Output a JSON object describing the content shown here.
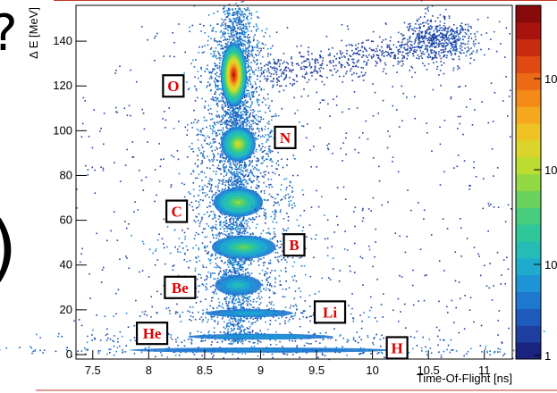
{
  "chart_data": {
    "type": "heatmap",
    "title": "",
    "xlabel": "Time-Of-Flight [ns]",
    "ylabel": "Δ E [MeV]",
    "xlim": [
      7.35,
      11.25
    ],
    "ylim": [
      -2,
      156
    ],
    "x_ticks": [
      "7.5",
      "8",
      "8.5",
      "9",
      "9.5",
      "10",
      "10.5",
      "11"
    ],
    "y_ticks": [
      "0",
      "20",
      "40",
      "60",
      "80",
      "100",
      "120",
      "140"
    ],
    "colorbar": {
      "scale": "log",
      "tick_labels": [
        "1",
        "10",
        "10",
        "10"
      ],
      "colors": [
        "#1a237e",
        "#1f3fa0",
        "#1f5bbd",
        "#1e78cf",
        "#1e93d6",
        "#1fabcc",
        "#26bcb6",
        "#2fc69a",
        "#47cd7c",
        "#6ad35e",
        "#93d943",
        "#bcdc32",
        "#dbd52b",
        "#eec324",
        "#f5a71e",
        "#f48a18",
        "#ec6a15",
        "#de4a12",
        "#c92c10",
        "#a8140d",
        "#880a0a"
      ]
    },
    "clusters": [
      {
        "name": "O",
        "label_pos": [
          8.22,
          120
        ],
        "tof": 8.76,
        "de": 125,
        "sx": 0.09,
        "sy": 11,
        "peak": 1.0
      },
      {
        "name": "N",
        "label_pos": [
          9.22,
          97
        ],
        "tof": 8.8,
        "de": 94,
        "sx": 0.12,
        "sy": 6,
        "peak": 0.55
      },
      {
        "name": "C",
        "label_pos": [
          8.25,
          64
        ],
        "tof": 8.8,
        "de": 68,
        "sx": 0.17,
        "sy": 5,
        "peak": 0.45
      },
      {
        "name": "B",
        "label_pos": [
          9.3,
          49
        ],
        "tof": 8.85,
        "de": 48,
        "sx": 0.22,
        "sy": 4,
        "peak": 0.38
      },
      {
        "name": "Be",
        "label_pos": [
          8.28,
          30
        ],
        "tof": 8.8,
        "de": 31,
        "sx": 0.16,
        "sy": 3.5,
        "peak": 0.2
      },
      {
        "name": "Li",
        "label_pos": [
          9.62,
          19
        ],
        "tof": 8.9,
        "de": 18.5,
        "sx": 0.3,
        "sy": 1.4,
        "peak": 0.16
      },
      {
        "name": "He",
        "label_pos": [
          8.03,
          9.5
        ],
        "tof": 9.0,
        "de": 8,
        "sx": 0.5,
        "sy": 1.0,
        "peak": 0.1
      },
      {
        "name": "H",
        "label_pos": [
          10.22,
          3
        ],
        "tof": 9.0,
        "de": 2,
        "sx": 0.9,
        "sy": 0.9,
        "peak": 0.06
      }
    ]
  }
}
